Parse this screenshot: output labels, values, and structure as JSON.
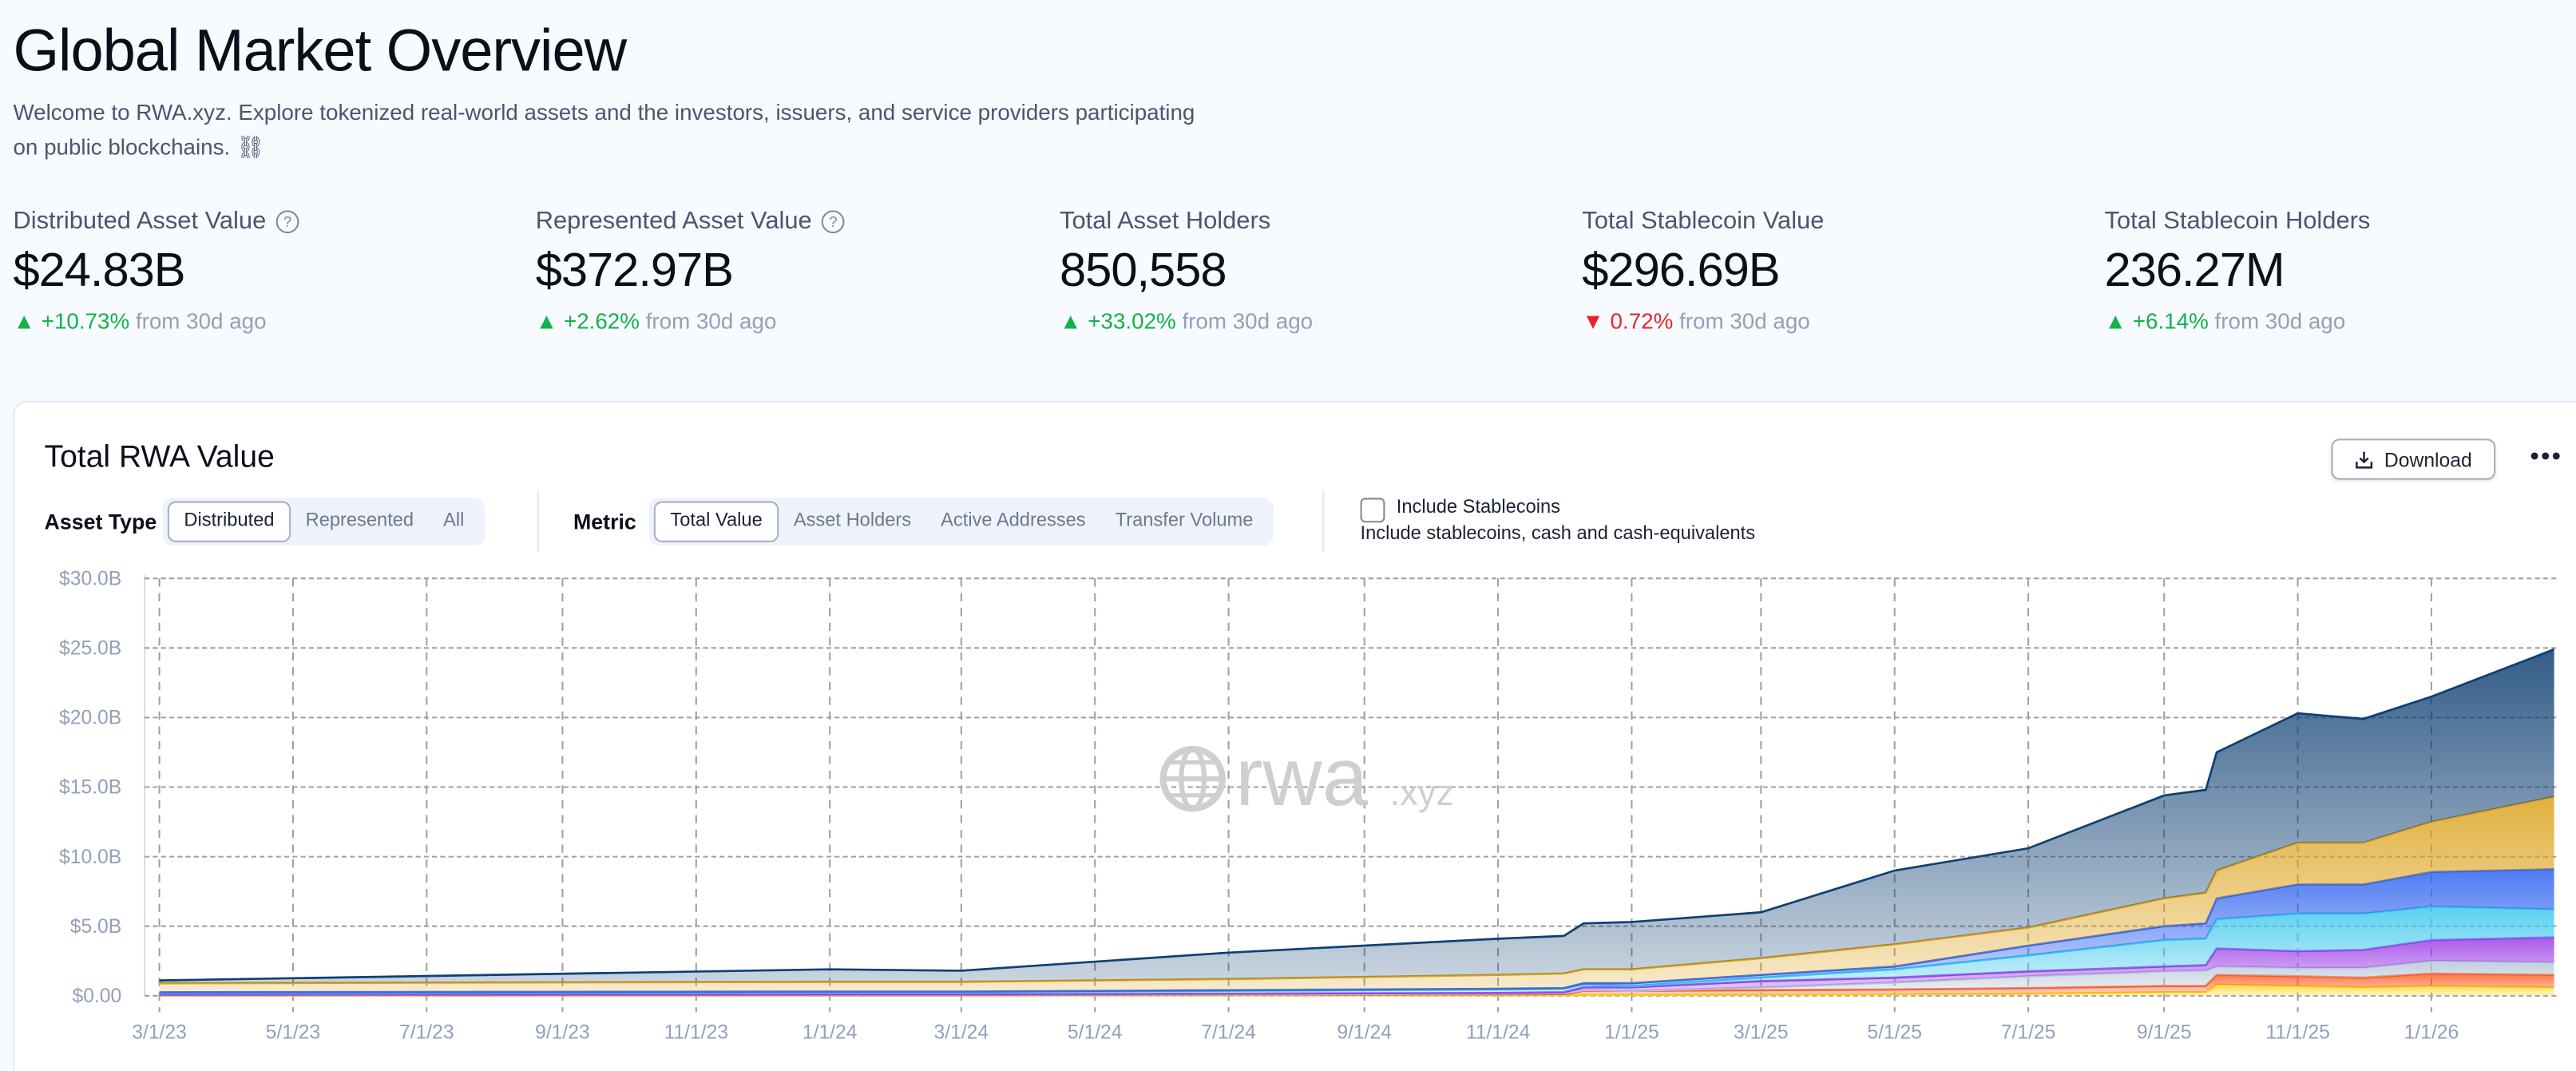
{
  "header": {
    "title": "Global Market Overview",
    "subtitle": "Welcome to RWA.xyz. Explore tokenized real-world assets and the investors, issuers, and service providers participating on public blockchains.",
    "subtitle_emoji": "⛓"
  },
  "metrics": [
    {
      "label": "Distributed Asset Value",
      "help": true,
      "value": "$24.83B",
      "direction": "up",
      "change": "+10.73%",
      "suffix": "from 30d ago"
    },
    {
      "label": "Represented Asset Value",
      "help": true,
      "value": "$372.97B",
      "direction": "up",
      "change": "+2.62%",
      "suffix": "from 30d ago"
    },
    {
      "label": "Total Asset Holders",
      "help": false,
      "value": "850,558",
      "direction": "up",
      "change": "+33.02%",
      "suffix": "from 30d ago"
    },
    {
      "label": "Total Stablecoin Value",
      "help": false,
      "value": "$296.69B",
      "direction": "down",
      "change": "0.72%",
      "suffix": "from 30d ago"
    },
    {
      "label": "Total Stablecoin Holders",
      "help": false,
      "value": "236.27M",
      "direction": "up",
      "change": "+6.14%",
      "suffix": "from 30d ago"
    }
  ],
  "colors": {
    "up": "#13b24b",
    "down": "#e5252a"
  },
  "chart_card": {
    "title": "Total RWA Value",
    "download_label": "Download",
    "more_icon": "ellipsis-icon",
    "download_icon": "download-icon",
    "asset_type": {
      "label": "Asset Type",
      "options": [
        "Distributed",
        "Represented",
        "All"
      ],
      "selected": "Distributed"
    },
    "metric": {
      "label": "Metric",
      "options": [
        "Total Value",
        "Asset Holders",
        "Active Addresses",
        "Transfer Volume"
      ],
      "selected": "Total Value"
    },
    "stablecoins": {
      "label": "Include Stablecoins",
      "description": "Include stablecoins, cash and cash-equivalents",
      "checked": false
    },
    "watermark": "rwa.xyz"
  },
  "chart_data": {
    "type": "area",
    "stacked": true,
    "grid": true,
    "ylim": [
      0,
      30
    ],
    "yticks": [
      "$0.00",
      "$5.0B",
      "$10.0B",
      "$15.0B",
      "$20.0B",
      "$25.0B",
      "$30.0B"
    ],
    "yticks_values": [
      0,
      5,
      10,
      15,
      20,
      25,
      30
    ],
    "xticks": [
      "3/1/23",
      "5/1/23",
      "7/1/23",
      "9/1/23",
      "11/1/23",
      "1/1/24",
      "3/1/24",
      "5/1/24",
      "7/1/24",
      "9/1/24",
      "11/1/24",
      "1/1/25",
      "3/1/25",
      "5/1/25",
      "7/1/25",
      "9/1/25",
      "11/1/25",
      "1/1/26"
    ],
    "x": [
      "2023-03-01",
      "2024-01-01",
      "2024-03-01",
      "2024-07-01",
      "2024-11-01",
      "2024-12-01",
      "2024-12-10",
      "2025-01-01",
      "2025-03-01",
      "2025-05-01",
      "2025-07-01",
      "2025-09-01",
      "2025-09-20",
      "2025-09-25",
      "2025-11-01",
      "2025-12-01",
      "2026-01-01",
      "2026-02-26"
    ],
    "series": [
      {
        "color": "#f7d51f",
        "values": [
          0.02,
          0.02,
          0.02,
          0.03,
          0.04,
          0.05,
          0.06,
          0.06,
          0.08,
          0.1,
          0.15,
          0.25,
          0.25,
          0.8,
          0.7,
          0.6,
          0.7,
          0.6
        ]
      },
      {
        "color": "#ff5a1f",
        "values": [
          0.03,
          0.03,
          0.03,
          0.05,
          0.06,
          0.07,
          0.29,
          0.29,
          0.32,
          0.35,
          0.4,
          0.45,
          0.45,
          0.7,
          0.7,
          0.7,
          0.9,
          0.9
        ]
      },
      {
        "color": "#b8c6d8",
        "values": [
          0.02,
          0.03,
          0.03,
          0.02,
          0.05,
          0.08,
          0.05,
          0.0,
          0.2,
          0.5,
          0.85,
          1.05,
          1.1,
          0.6,
          0.6,
          0.7,
          0.9,
          0.9
        ]
      },
      {
        "color": "#9b3de8",
        "values": [
          0.01,
          0.02,
          0.02,
          0.05,
          0.05,
          0.05,
          0.2,
          0.25,
          0.45,
          0.35,
          0.35,
          0.35,
          0.4,
          1.3,
          1.2,
          1.3,
          1.5,
          1.8
        ]
      },
      {
        "color": "#3fc8ee",
        "values": [
          0.12,
          0.15,
          0.15,
          0.2,
          0.25,
          0.25,
          0.2,
          0.1,
          0.25,
          0.6,
          1.15,
          1.9,
          1.9,
          2.1,
          2.7,
          2.6,
          2.4,
          2.0
        ]
      },
      {
        "color": "#2f64f0",
        "values": [
          0.05,
          0.05,
          0.05,
          0.05,
          0.05,
          0.05,
          0.1,
          0.2,
          0.2,
          0.2,
          0.7,
          1.0,
          1.1,
          1.5,
          2.1,
          2.1,
          2.5,
          2.9
        ]
      },
      {
        "color": "#dca21c",
        "values": [
          0.65,
          0.7,
          0.7,
          0.8,
          1.0,
          1.05,
          1.0,
          1.0,
          1.2,
          1.6,
          1.3,
          2.0,
          2.2,
          2.0,
          3.0,
          3.0,
          3.6,
          5.2
        ]
      },
      {
        "color": "#0e3f72",
        "values": [
          0.2,
          0.9,
          0.8,
          1.9,
          2.6,
          2.7,
          3.3,
          3.4,
          3.3,
          5.3,
          5.7,
          7.4,
          7.4,
          8.5,
          9.3,
          8.9,
          9.0,
          10.6
        ]
      }
    ]
  }
}
